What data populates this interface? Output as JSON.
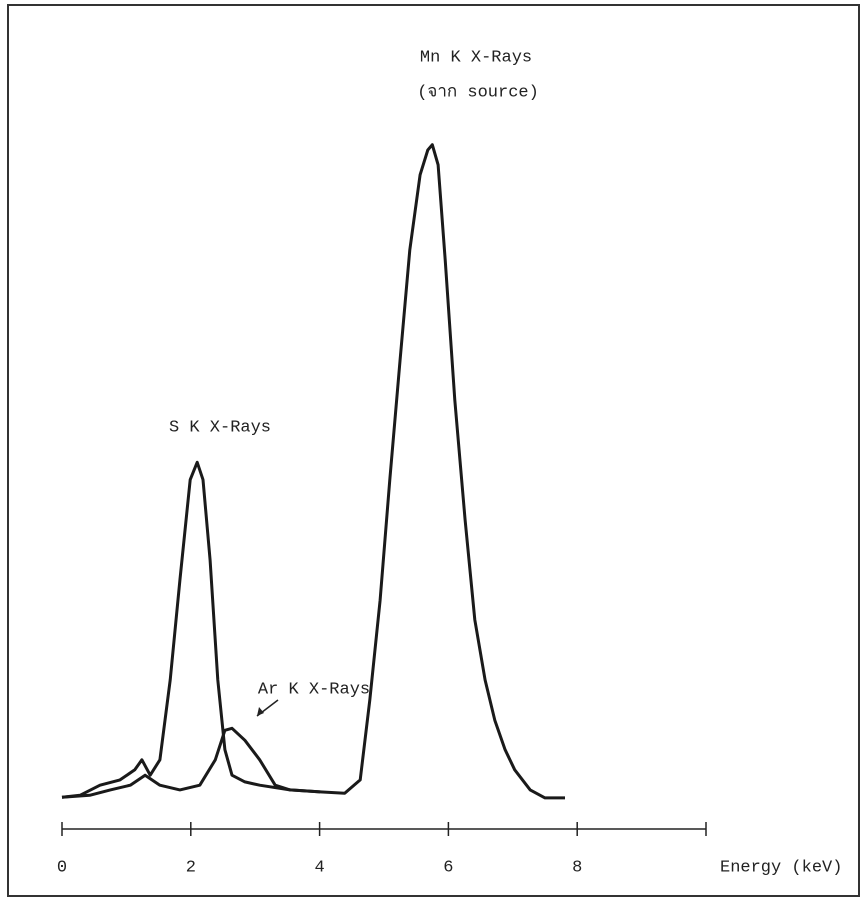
{
  "chart_data": {
    "type": "line",
    "annotations": [
      "Mn K X-Rays",
      "(จาก source)",
      "S K X-Rays",
      "Ar K X-Rays"
    ],
    "x_label": "Energy (keV)",
    "xlim": [
      0,
      10
    ],
    "xticks": [
      0,
      2,
      4,
      6,
      8
    ],
    "ylim": [
      0,
      100
    ],
    "series": [
      {
        "color": "#1a1a1a",
        "x": [
          0,
          0.28,
          0.59,
          0.9,
          1.13,
          1.24,
          1.37,
          1.52,
          1.68,
          1.83,
          1.99,
          2.1,
          2.19,
          2.3,
          2.42,
          2.53,
          2.64,
          2.84,
          3.07,
          3.54,
          4.01,
          4.39,
          4.63,
          4.78,
          4.94,
          5.09,
          5.25,
          5.4,
          5.56,
          5.68,
          5.75,
          5.84,
          5.95,
          6.1,
          6.26,
          6.41,
          6.57,
          6.72,
          6.88,
          7.03,
          7.27,
          7.5,
          7.81
        ],
        "values": [
          1.9,
          2.2,
          3.7,
          4.5,
          6.0,
          7.5,
          5.2,
          7.5,
          19.4,
          34.3,
          49.3,
          51.9,
          49.3,
          37.3,
          19.4,
          9.0,
          5.2,
          4.2,
          3.7,
          3.0,
          2.7,
          2.5,
          4.5,
          16.4,
          31.3,
          49.3,
          67.2,
          83.6,
          94.8,
          98.5,
          99.3,
          96.3,
          82.1,
          61.2,
          43.3,
          28.4,
          19.4,
          13.4,
          9.0,
          6.0,
          3.0,
          1.8,
          1.8
        ]
      },
      {
        "color": "#1a1a1a",
        "x": [
          0,
          0.43,
          0.75,
          1.06,
          1.29,
          1.52,
          1.83,
          2.14,
          2.38,
          2.53,
          2.64,
          2.84,
          3.07,
          3.31,
          3.54,
          4.01
        ],
        "values": [
          1.9,
          2.2,
          3.0,
          3.7,
          5.2,
          3.7,
          3.0,
          3.7,
          7.5,
          11.9,
          12.2,
          10.4,
          7.5,
          3.7,
          3.0,
          2.7
        ]
      }
    ]
  }
}
